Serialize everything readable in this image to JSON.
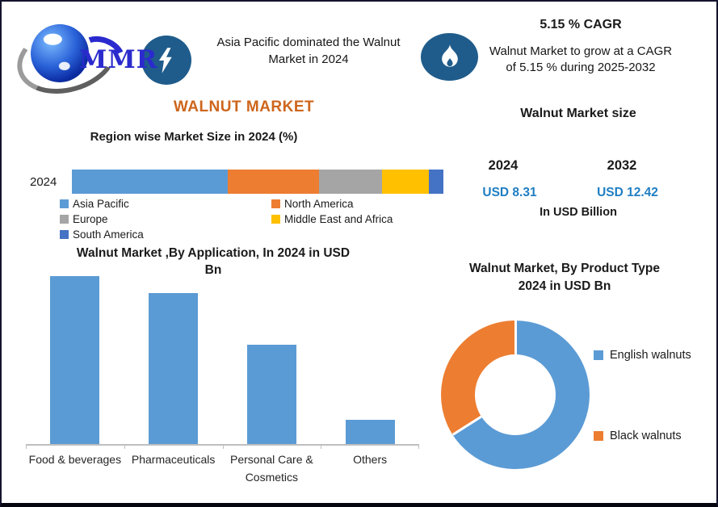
{
  "colors": {
    "accent_orange": "#CE651B",
    "value_blue": "#1F7EC2",
    "icon_bg": "#1F5C8B",
    "axis_gray": "#BFBFBF",
    "logo_blue": "#2B2BCD",
    "bar_blue": "#5B9BD5"
  },
  "header": {
    "logo_text": "MMR",
    "headline": "Asia Pacific dominated the Walnut Market in 2024",
    "cagr_title": "5.15 % CAGR",
    "cagr_text": "Walnut Market to grow at a CAGR of 5.15 % during 2025-2032"
  },
  "main_title": "WALNUT MARKET",
  "market_size": {
    "title": "Walnut Market size",
    "entries": [
      {
        "year": "2024",
        "value": "USD 8.31"
      },
      {
        "year": "2032",
        "value": "USD 12.42"
      }
    ],
    "unit_note": "In USD Billion"
  },
  "chart_data": [
    {
      "type": "bar",
      "subtype": "stacked-horizontal",
      "title": "Region wise Market Size in 2024 (%)",
      "categories": [
        "2024"
      ],
      "series": [
        {
          "name": "Asia Pacific",
          "values": [
            42
          ],
          "color": "#5B9BD5"
        },
        {
          "name": "North America",
          "values": [
            24.5
          ],
          "color": "#ED7D31"
        },
        {
          "name": "Europe",
          "values": [
            17
          ],
          "color": "#A5A5A5"
        },
        {
          "name": "Middle East and Africa",
          "values": [
            12.5
          ],
          "color": "#FFC000"
        },
        {
          "name": "South America",
          "values": [
            4
          ],
          "color": "#4472C4"
        }
      ],
      "xlim": [
        0,
        100
      ],
      "grid": false,
      "legend_position": "bottom-left-two-columns"
    },
    {
      "type": "bar",
      "title": "Walnut Market ,By  Application, In 2024 in USD Bn",
      "categories": [
        "Food & beverages",
        "Pharmaceuticals",
        "Personal Care & Cosmetics",
        "Others"
      ],
      "values": [
        3.15,
        2.83,
        1.87,
        0.46
      ],
      "ylabel": "USD Bn",
      "ylim": [
        0,
        3.2
      ],
      "bar_color": "#5B9BD5",
      "grid": false,
      "value_labels": false
    },
    {
      "type": "pie",
      "subtype": "donut",
      "title": "Walnut Market, By Product Type 2024 in USD Bn",
      "labels": [
        "English walnuts",
        "Black walnuts"
      ],
      "values": [
        66,
        34
      ],
      "colors": [
        "#5B9BD5",
        "#ED7D31"
      ],
      "start_angle_deg": 0,
      "legend_position": "right"
    }
  ]
}
